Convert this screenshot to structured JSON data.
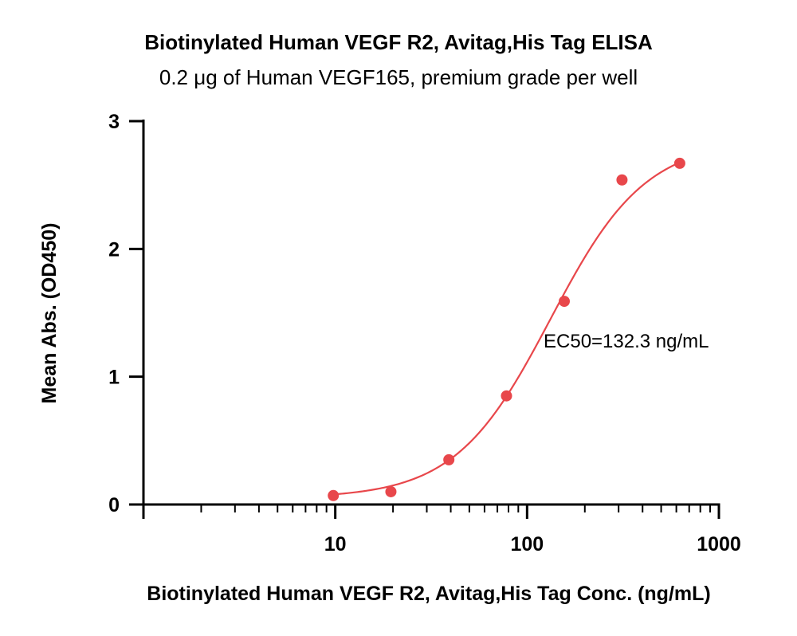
{
  "chart_data": {
    "type": "scatter",
    "title": "Biotinylated Human VEGF R2, Avitag,His Tag ELISA",
    "subtitle": "0.2 μg of Human VEGF165, premium grade per well",
    "xlabel": "Biotinylated Human VEGF R2, Avitag,His Tag Conc. (ng/mL)",
    "ylabel": "Mean Abs. (OD450)",
    "x_scale": "log",
    "xlim": [
      1,
      1000
    ],
    "ylim": [
      0,
      3
    ],
    "x_ticks": [
      10,
      100,
      1000
    ],
    "x_tick_labels": [
      "10",
      "100",
      "1000"
    ],
    "y_ticks": [
      0,
      1,
      2,
      3
    ],
    "y_tick_labels": [
      "0",
      "1",
      "2",
      "3"
    ],
    "grid": false,
    "series": [
      {
        "color": "#e8474b",
        "x": [
          9.77,
          19.5,
          39.1,
          78.1,
          156.3,
          312.5,
          625
        ],
        "y": [
          0.07,
          0.1,
          0.35,
          0.85,
          1.59,
          2.54,
          2.67
        ]
      }
    ],
    "fit_curve": {
      "model": "4PL",
      "bottom": 0.05,
      "top": 2.85,
      "ec50": 132.3,
      "hill": 1.75
    },
    "annotation": "EC50=132.3 ng/mL"
  }
}
